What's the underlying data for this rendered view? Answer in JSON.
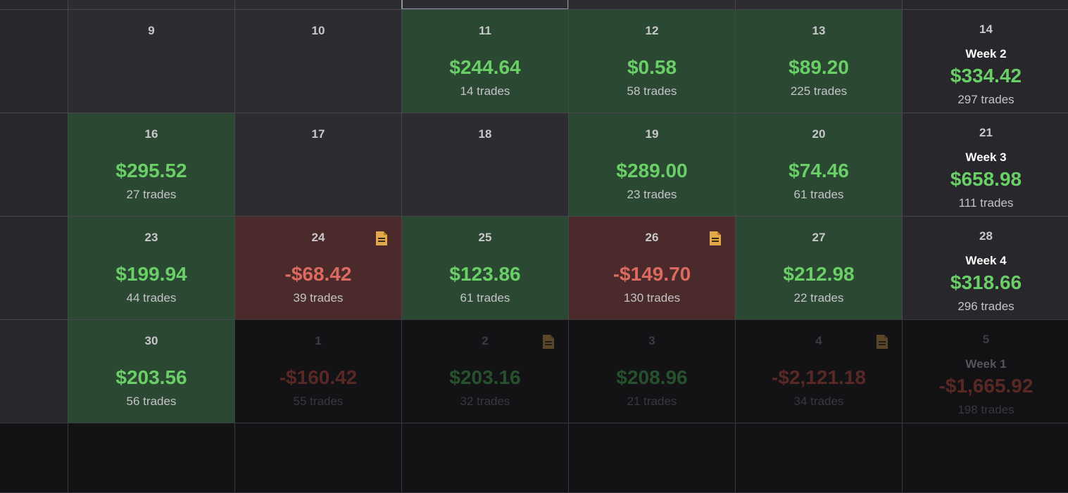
{
  "colors": {
    "profit_bg": "#2b4833",
    "loss_bg": "#4a2a2a",
    "profit_text": "#69cf66",
    "loss_text": "#dd6a60",
    "note_icon": "#e2a84a"
  },
  "top_row": {
    "partial_text": ""
  },
  "weeks": [
    {
      "days": [
        {
          "day": "9",
          "pnl": "",
          "trades": "",
          "type": "empty"
        },
        {
          "day": "10",
          "pnl": "",
          "trades": "",
          "type": "empty"
        },
        {
          "day": "11",
          "pnl": "$244.64",
          "trades": "14 trades",
          "type": "profit"
        },
        {
          "day": "12",
          "pnl": "$0.58",
          "trades": "58 trades",
          "type": "profit"
        },
        {
          "day": "13",
          "pnl": "$89.20",
          "trades": "225 trades",
          "type": "profit"
        }
      ],
      "summary": {
        "day": "14",
        "label": "Week 2",
        "pnl": "$334.42",
        "trades": "297 trades",
        "type": "profit"
      }
    },
    {
      "days": [
        {
          "day": "16",
          "pnl": "$295.52",
          "trades": "27 trades",
          "type": "profit"
        },
        {
          "day": "17",
          "pnl": "",
          "trades": "",
          "type": "empty"
        },
        {
          "day": "18",
          "pnl": "",
          "trades": "",
          "type": "empty"
        },
        {
          "day": "19",
          "pnl": "$289.00",
          "trades": "23 trades",
          "type": "profit"
        },
        {
          "day": "20",
          "pnl": "$74.46",
          "trades": "61 trades",
          "type": "profit"
        }
      ],
      "summary": {
        "day": "21",
        "label": "Week 3",
        "pnl": "$658.98",
        "trades": "111 trades",
        "type": "profit"
      }
    },
    {
      "days": [
        {
          "day": "23",
          "pnl": "$199.94",
          "trades": "44 trades",
          "type": "profit"
        },
        {
          "day": "24",
          "pnl": "-$68.42",
          "trades": "39 trades",
          "type": "loss",
          "note": true
        },
        {
          "day": "25",
          "pnl": "$123.86",
          "trades": "61 trades",
          "type": "profit"
        },
        {
          "day": "26",
          "pnl": "-$149.70",
          "trades": "130 trades",
          "type": "loss",
          "note": true
        },
        {
          "day": "27",
          "pnl": "$212.98",
          "trades": "22 trades",
          "type": "profit"
        }
      ],
      "summary": {
        "day": "28",
        "label": "Week 4",
        "pnl": "$318.66",
        "trades": "296 trades",
        "type": "profit"
      }
    },
    {
      "days": [
        {
          "day": "30",
          "pnl": "$203.56",
          "trades": "56 trades",
          "type": "profit"
        },
        {
          "day": "1",
          "pnl": "-$160.42",
          "trades": "55 trades",
          "type": "loss",
          "dim": true
        },
        {
          "day": "2",
          "pnl": "$203.16",
          "trades": "32 trades",
          "type": "profit",
          "dim": true,
          "note": true
        },
        {
          "day": "3",
          "pnl": "$208.96",
          "trades": "21 trades",
          "type": "profit",
          "dim": true
        },
        {
          "day": "4",
          "pnl": "-$2,121.18",
          "trades": "34 trades",
          "type": "loss",
          "dim": true,
          "note": true
        }
      ],
      "summary": {
        "day": "5",
        "label": "Week 1",
        "pnl": "-$1,665.92",
        "trades": "198 trades",
        "type": "loss",
        "dim": true
      }
    }
  ]
}
